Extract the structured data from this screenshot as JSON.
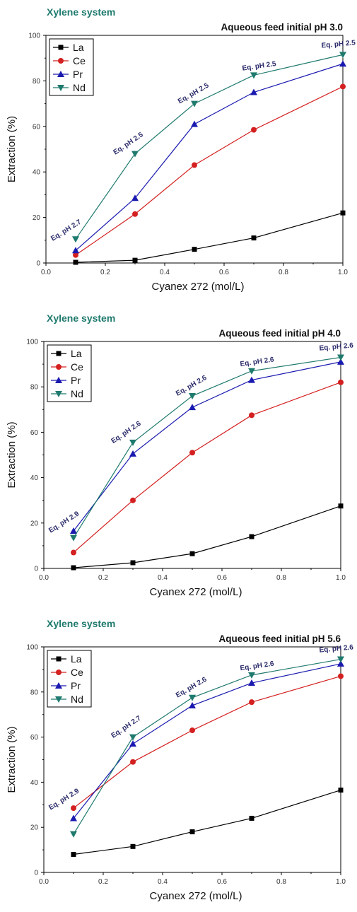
{
  "chart_data": [
    {
      "type": "line",
      "system_label": "Xylene system",
      "title": "Aqueous feed initial pH 3.0",
      "xlabel": "Cyanex 272 (mol/L)",
      "ylabel": "Extraction (%)",
      "xlim": [
        0.0,
        1.0
      ],
      "ylim": [
        0,
        100
      ],
      "x_ticks": [
        "0.0",
        "0.2",
        "0.4",
        "0.6",
        "0.8",
        "1.0"
      ],
      "y_ticks": [
        "0",
        "20",
        "40",
        "60",
        "80",
        "100"
      ],
      "x": [
        0.1,
        0.3,
        0.5,
        0.7,
        1.0
      ],
      "legend_position": "top-left",
      "series": [
        {
          "name": "La",
          "color": "#000000",
          "marker": "square",
          "values": [
            0.3,
            1.2,
            6,
            11,
            22
          ]
        },
        {
          "name": "Ce",
          "color": "#d42020",
          "marker": "circle",
          "values": [
            3.5,
            21.5,
            43,
            58.5,
            77.5
          ]
        },
        {
          "name": "Pr",
          "color": "#1a1ab0",
          "marker": "triangle-up",
          "values": [
            5.5,
            28.5,
            61,
            75,
            87.5
          ]
        },
        {
          "name": "Nd",
          "color": "#1f7a6e",
          "marker": "triangle-down",
          "values": [
            10.5,
            48,
            70,
            82.5,
            91.5
          ]
        }
      ],
      "annotations": [
        {
          "text": "Eq. pH 2.7",
          "x": 0.1,
          "y": 10.5
        },
        {
          "text": "Eq. pH 2.5",
          "x": 0.3,
          "y": 48
        },
        {
          "text": "Eq. pH 2.5",
          "x": 0.5,
          "y": 70
        },
        {
          "text": "Eq. pH 2.5",
          "x": 0.7,
          "y": 82.5
        },
        {
          "text": "Eq. pH 2.5",
          "x": 1.0,
          "y": 91.5
        }
      ]
    },
    {
      "type": "line",
      "system_label": "Xylene system",
      "title": "Aqueous feed initial pH 4.0",
      "xlabel": "Cyanex 272 (mol/L)",
      "ylabel": "Extraction (%)",
      "xlim": [
        0.0,
        1.0
      ],
      "ylim": [
        0,
        100
      ],
      "x_ticks": [
        "0.0",
        "0.2",
        "0.4",
        "0.6",
        "0.8",
        "1.0"
      ],
      "y_ticks": [
        "0",
        "20",
        "40",
        "60",
        "80",
        "100"
      ],
      "x": [
        0.1,
        0.3,
        0.5,
        0.7,
        1.0
      ],
      "legend_position": "top-left",
      "series": [
        {
          "name": "La",
          "color": "#000000",
          "marker": "square",
          "values": [
            0.3,
            2.5,
            6.5,
            14,
            27.5
          ]
        },
        {
          "name": "Ce",
          "color": "#d42020",
          "marker": "circle",
          "values": [
            7,
            30,
            51,
            67.5,
            82
          ]
        },
        {
          "name": "Pr",
          "color": "#1a1ab0",
          "marker": "triangle-up",
          "values": [
            16.5,
            50.5,
            71,
            83,
            91
          ]
        },
        {
          "name": "Nd",
          "color": "#1f7a6e",
          "marker": "triangle-down",
          "values": [
            13.5,
            55.5,
            76,
            87,
            93
          ]
        }
      ],
      "annotations": [
        {
          "text": "Eq. pH 2.9",
          "x": 0.1,
          "y": 16.5
        },
        {
          "text": "Eq. pH 2.6",
          "x": 0.3,
          "y": 55.5
        },
        {
          "text": "Eq. pH 2.6",
          "x": 0.5,
          "y": 76
        },
        {
          "text": "Eq. pH 2.6",
          "x": 0.7,
          "y": 87
        },
        {
          "text": "Eq. pH 2.6",
          "x": 1.0,
          "y": 93
        }
      ]
    },
    {
      "type": "line",
      "system_label": "Xylene system",
      "title": "Aqueous feed initial pH 5.6",
      "xlabel": "Cyanex 272 (mol/L)",
      "ylabel": "Extraction (%)",
      "xlim": [
        0.0,
        1.0
      ],
      "ylim": [
        0,
        100
      ],
      "x_ticks": [
        "0.0",
        "0.2",
        "0.4",
        "0.6",
        "0.8",
        "1.0"
      ],
      "y_ticks": [
        "0",
        "20",
        "40",
        "60",
        "80",
        "100"
      ],
      "x": [
        0.1,
        0.3,
        0.5,
        0.7,
        1.0
      ],
      "legend_position": "top-left",
      "series": [
        {
          "name": "La",
          "color": "#000000",
          "marker": "square",
          "values": [
            8,
            11.5,
            18,
            24,
            36.5
          ]
        },
        {
          "name": "Ce",
          "color": "#d42020",
          "marker": "circle",
          "values": [
            28.5,
            49,
            63,
            75.5,
            87
          ]
        },
        {
          "name": "Pr",
          "color": "#1a1ab0",
          "marker": "triangle-up",
          "values": [
            24,
            57,
            74,
            84,
            92.5
          ]
        },
        {
          "name": "Nd",
          "color": "#1f7a6e",
          "marker": "triangle-down",
          "values": [
            17,
            60,
            77.5,
            87.5,
            94.5
          ]
        }
      ],
      "annotations": [
        {
          "text": "Eq. pH 2.9",
          "x": 0.1,
          "y": 28.5
        },
        {
          "text": "Eq. pH 2.7",
          "x": 0.3,
          "y": 60
        },
        {
          "text": "Eq. pH 2.6",
          "x": 0.5,
          "y": 77.5
        },
        {
          "text": "Eq. pH 2.6",
          "x": 0.7,
          "y": 87.5
        },
        {
          "text": "Eq. pH 2.6",
          "x": 1.0,
          "y": 94.5
        }
      ]
    }
  ]
}
